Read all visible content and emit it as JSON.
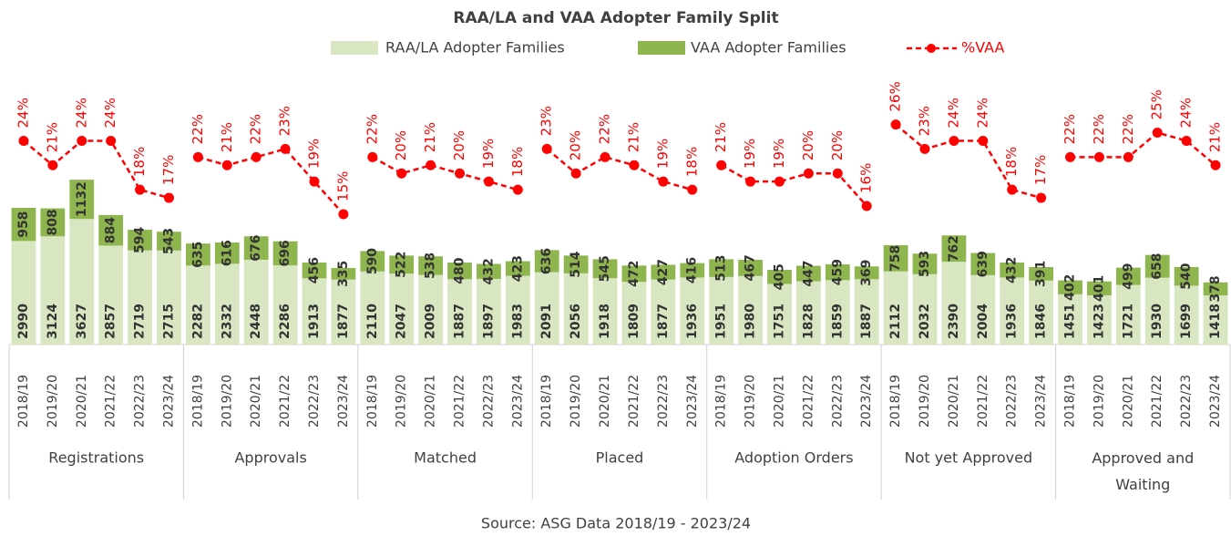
{
  "chart_data": {
    "type": "stacked_bar_line",
    "title": "RAA/LA and VAA Adopter Family Split",
    "annotation": "Source: ASG Data 2018/19 - 2023/24",
    "groups": [
      "Registrations",
      "Approvals",
      "Matched",
      "Placed",
      "Adoption Orders",
      "Not yet Approved",
      "Approved and Waiting"
    ],
    "categories": [
      "2018/19",
      "2019/20",
      "2020/21",
      "2021/22",
      "2022/23",
      "2023/24",
      "2018/19",
      "2019/20",
      "2020/21",
      "2021/22",
      "2022/23",
      "2023/24",
      "2018/19",
      "2019/20",
      "2020/21",
      "2021/22",
      "2022/23",
      "2023/24",
      "2018/19",
      "2019/20",
      "2020/21",
      "2021/22",
      "2022/23",
      "2023/24",
      "2018/19",
      "2019/20",
      "2020/21",
      "2021/22",
      "2022/23",
      "2023/24",
      "2018/19",
      "2019/20",
      "2020/21",
      "2021/22",
      "2022/23",
      "2023/24",
      "2018/19",
      "2019/20",
      "2020/21",
      "2021/22",
      "2022/23",
      "2023/24"
    ],
    "series": [
      {
        "name": "RAA/LA Adopter Families",
        "color": "#d8e7c1",
        "values": [
          2990,
          3124,
          3627,
          2857,
          2719,
          2715,
          2282,
          2332,
          2448,
          2286,
          1913,
          1877,
          2110,
          2047,
          2009,
          1887,
          1897,
          1983,
          2091,
          2056,
          1918,
          1809,
          1877,
          1936,
          1951,
          1980,
          1751,
          1828,
          1859,
          1887,
          2112,
          2032,
          2390,
          2004,
          1936,
          1846,
          1451,
          1423,
          1721,
          1930,
          1699,
          1418
        ]
      },
      {
        "name": "VAA Adopter Families",
        "color": "#8fb54f",
        "values": [
          958,
          808,
          1132,
          884,
          594,
          543,
          635,
          616,
          676,
          696,
          456,
          335,
          590,
          522,
          538,
          480,
          432,
          423,
          636,
          514,
          545,
          472,
          427,
          416,
          513,
          467,
          405,
          447,
          459,
          369,
          758,
          593,
          762,
          639,
          432,
          391,
          402,
          401,
          499,
          658,
          540,
          378
        ]
      },
      {
        "name": "%VAA",
        "color": "#ff0000",
        "axis": "y2",
        "values": [
          24,
          21,
          24,
          24,
          18,
          17,
          22,
          21,
          22,
          23,
          19,
          15,
          22,
          20,
          21,
          20,
          19,
          18,
          23,
          20,
          22,
          21,
          19,
          18,
          21,
          19,
          19,
          20,
          20,
          16,
          26,
          23,
          24,
          24,
          18,
          17,
          22,
          22,
          22,
          25,
          24,
          21
        ],
        "value_labels": [
          "24%",
          "21%",
          "24%",
          "24%",
          "18%",
          "17%",
          "22%",
          "21%",
          "22%",
          "23%",
          "19%",
          "15%",
          "22%",
          "20%",
          "21%",
          "20%",
          "19%",
          "18%",
          "23%",
          "20%",
          "22%",
          "21%",
          "19%",
          "18%",
          "21%",
          "19%",
          "19%",
          "20%",
          "20%",
          "16%",
          "26%",
          "23%",
          "24%",
          "24%",
          "18%",
          "17%",
          "22%",
          "22%",
          "22%",
          "25%",
          "24%",
          "21%"
        ]
      }
    ],
    "ylim": [
      0,
      8000
    ],
    "y2lim": [
      -1,
      33
    ],
    "legend": "top"
  }
}
